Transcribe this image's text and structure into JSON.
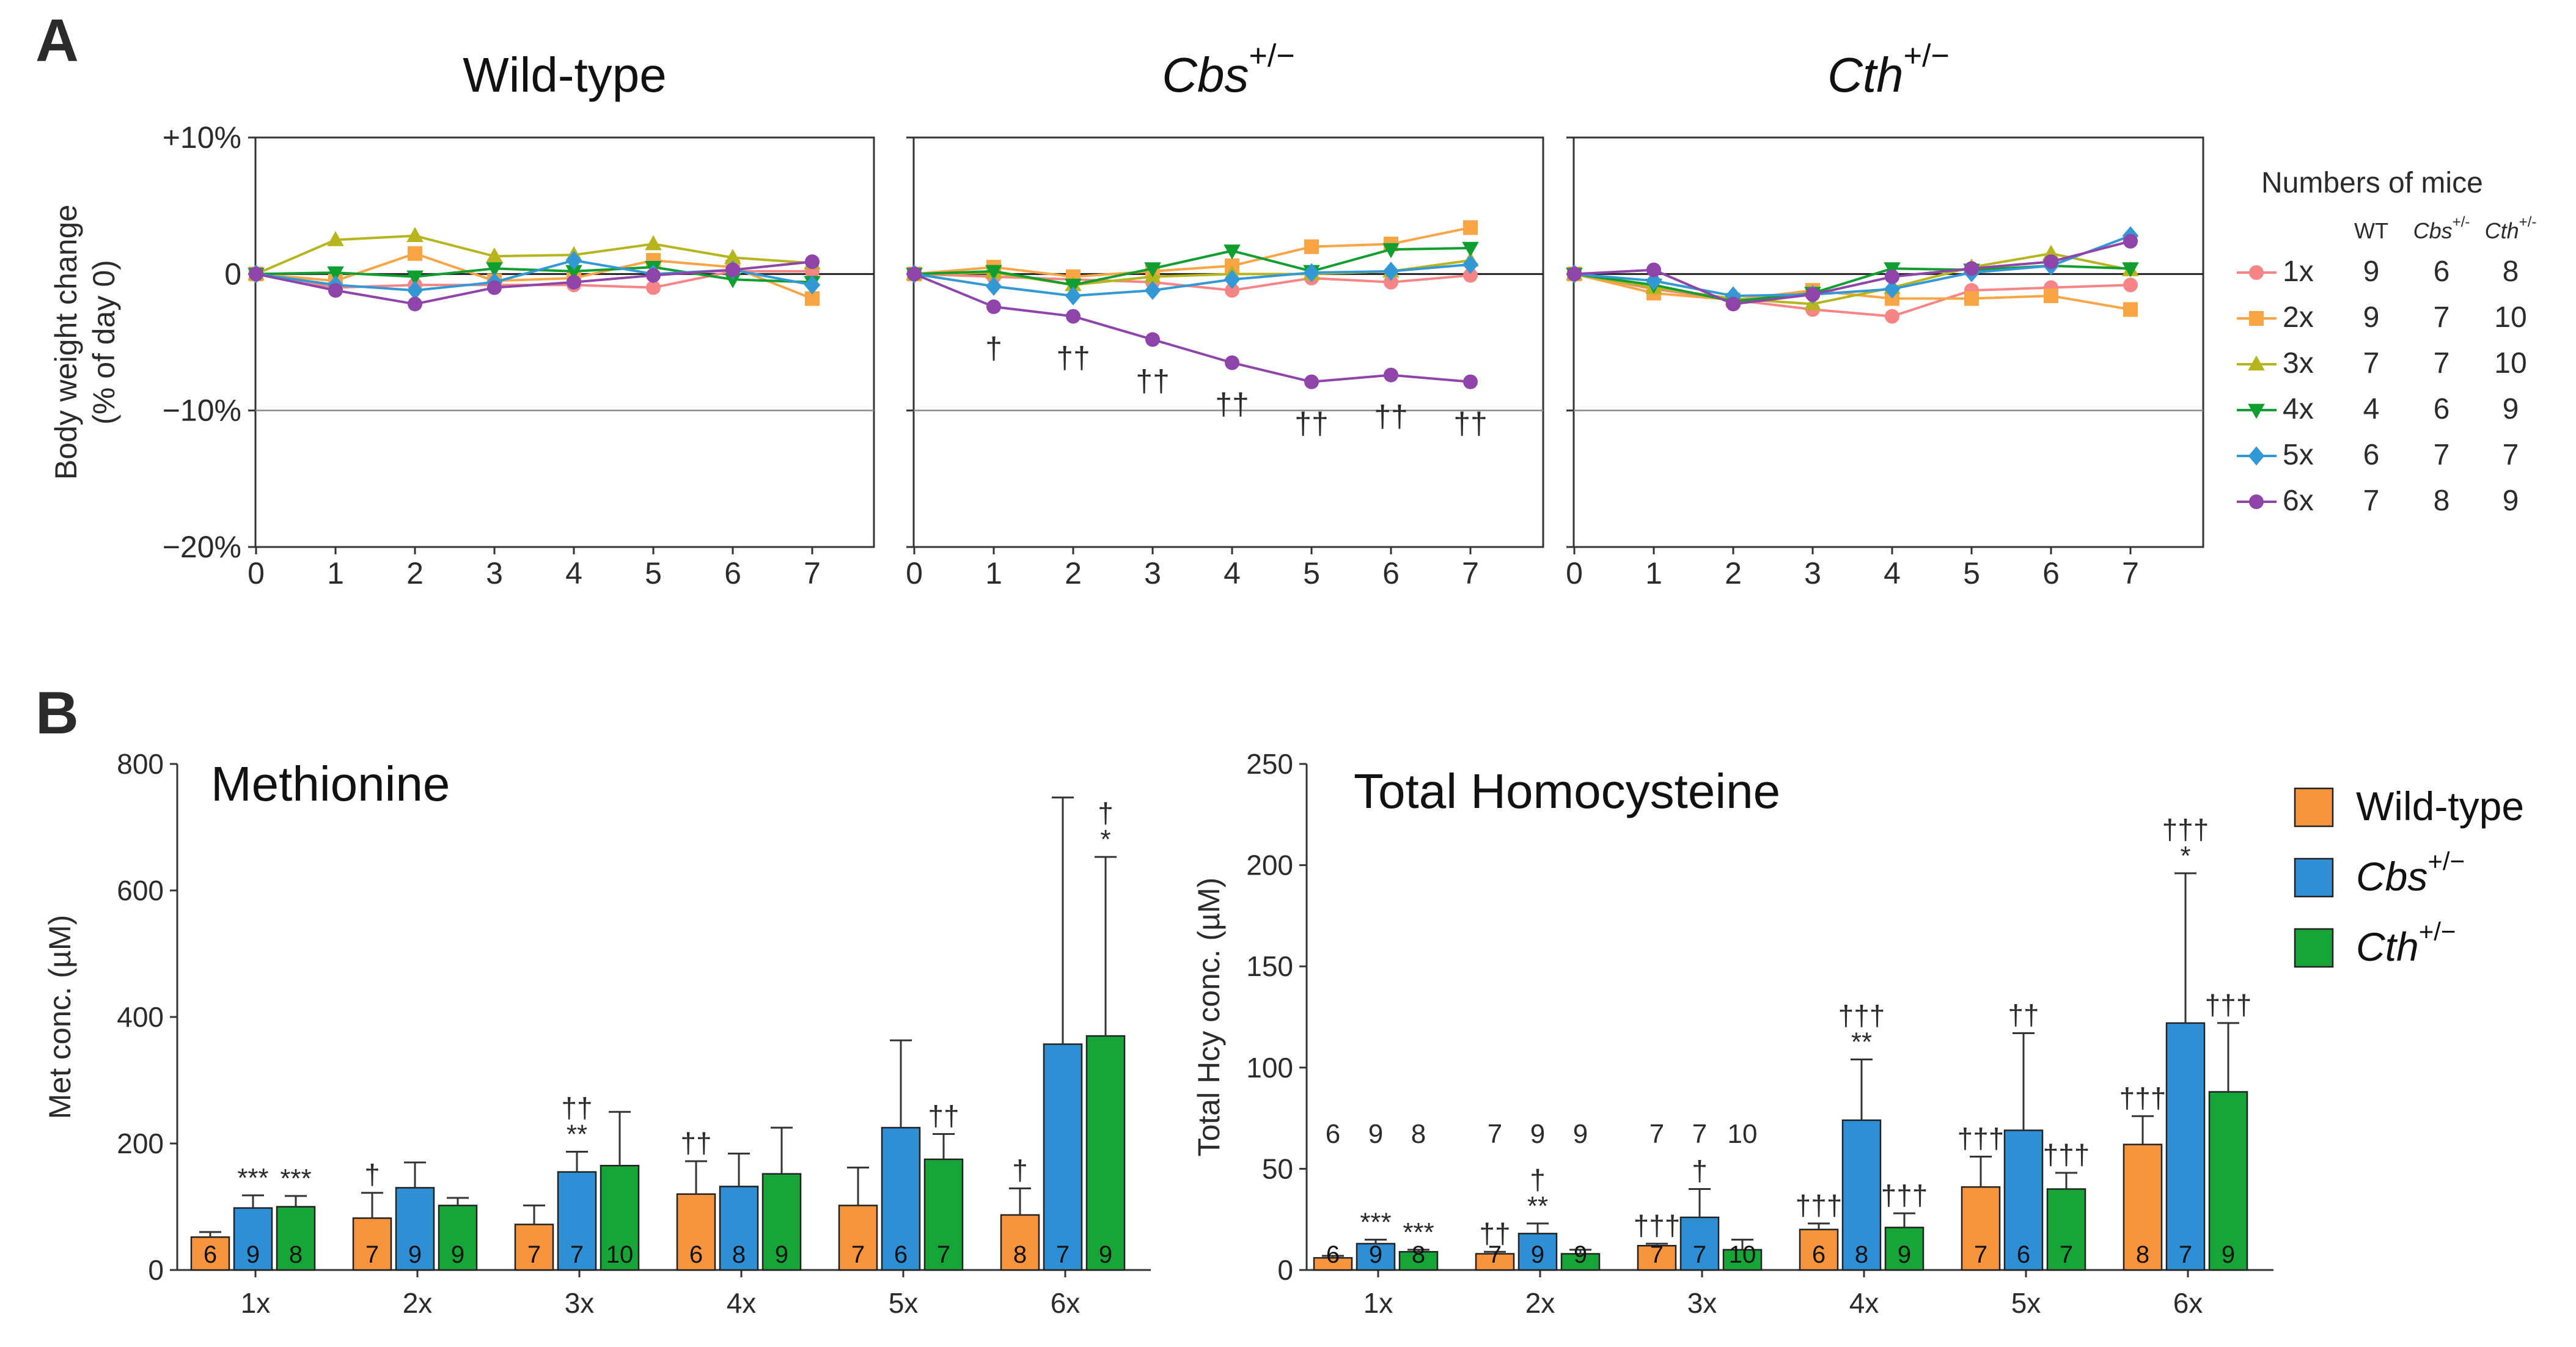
{
  "panel_labels": [
    "A",
    "B"
  ],
  "colors": {
    "wt": "#f7943d",
    "cbs": "#2f8fd4",
    "cth": "#17a537",
    "line_1x": "#f88585",
    "line_2x": "#f9a545",
    "line_3x": "#b6b51e",
    "line_4x": "#0f9e2f",
    "line_5x": "#3399d6",
    "line_6x": "#8e44a8"
  },
  "panel_a": {
    "y_axis_label_line1": "Body weight change",
    "y_axis_label_line2": "(% of day 0)",
    "y_tick_labels": [
      "+10%",
      "0",
      "−10%",
      "−20%"
    ],
    "legend": {
      "title": "Numbers of mice",
      "col_wt": "WT",
      "col_cbs_base": "Cbs",
      "col_cth_base": "Cth",
      "sup": "+/-",
      "rows": [
        {
          "label": "1x",
          "wt": "9",
          "cbs": "6",
          "cth": "8",
          "marker": "circle",
          "color_key": "line_1x"
        },
        {
          "label": "2x",
          "wt": "9",
          "cbs": "7",
          "cth": "10",
          "marker": "square",
          "color_key": "line_2x"
        },
        {
          "label": "3x",
          "wt": "7",
          "cbs": "7",
          "cth": "10",
          "marker": "triangle-up",
          "color_key": "line_3x"
        },
        {
          "label": "4x",
          "wt": "4",
          "cbs": "6",
          "cth": "9",
          "marker": "triangle-down",
          "color_key": "line_4x"
        },
        {
          "label": "5x",
          "wt": "6",
          "cbs": "7",
          "cth": "7",
          "marker": "diamond",
          "color_key": "line_5x"
        },
        {
          "label": "6x",
          "wt": "7",
          "cbs": "8",
          "cth": "9",
          "marker": "circle",
          "color_key": "line_6x"
        }
      ]
    }
  },
  "panel_b_legend": {
    "wt": "Wild-type",
    "cbs_base": "Cbs",
    "cth_base": "Cth",
    "sup": "+/−"
  },
  "chart_data": [
    {
      "type": "line",
      "title": "Wild-type",
      "x": [
        0,
        1,
        2,
        3,
        4,
        5,
        6,
        7
      ],
      "ylim": [
        -20,
        10
      ],
      "y_ticks": [
        10,
        0,
        -10,
        -20
      ],
      "reference_line": -10,
      "series": [
        {
          "name": "1x",
          "values": [
            0,
            -1.0,
            -0.8,
            -0.8,
            -0.8,
            -1.0,
            0.2,
            0.2
          ]
        },
        {
          "name": "2x",
          "values": [
            0,
            -0.5,
            1.5,
            -0.5,
            -0.3,
            1.0,
            0.5,
            -1.8
          ]
        },
        {
          "name": "3x",
          "values": [
            0,
            2.5,
            2.8,
            1.3,
            1.4,
            2.2,
            1.2,
            0.8
          ]
        },
        {
          "name": "4x",
          "values": [
            0,
            0.1,
            -0.2,
            0.4,
            0.2,
            0.5,
            -0.4,
            -0.6
          ]
        },
        {
          "name": "5x",
          "values": [
            0,
            -0.8,
            -1.2,
            -0.6,
            1.0,
            0.0,
            0.3,
            -0.8
          ]
        },
        {
          "name": "6x",
          "values": [
            0,
            -1.2,
            -2.2,
            -1.0,
            -0.6,
            -0.1,
            0.3,
            0.9
          ]
        }
      ],
      "annotations": []
    },
    {
      "type": "line",
      "title_base": "Cbs",
      "title_sup": "+/−",
      "x": [
        0,
        1,
        2,
        3,
        4,
        5,
        6,
        7
      ],
      "ylim": [
        -20,
        10
      ],
      "reference_line": -10,
      "series": [
        {
          "name": "1x",
          "values": [
            0,
            -0.2,
            -0.4,
            -0.6,
            -1.2,
            -0.3,
            -0.6,
            -0.1
          ]
        },
        {
          "name": "2x",
          "values": [
            0,
            0.5,
            -0.2,
            0.2,
            0.6,
            2.0,
            2.2,
            3.4
          ]
        },
        {
          "name": "3x",
          "values": [
            0,
            0.1,
            -0.8,
            -0.2,
            0.0,
            0.0,
            0.2,
            1.0
          ]
        },
        {
          "name": "4x",
          "values": [
            0,
            0.2,
            -0.8,
            0.4,
            1.7,
            0.2,
            1.8,
            1.9
          ]
        },
        {
          "name": "5x",
          "values": [
            0,
            -0.9,
            -1.6,
            -1.2,
            -0.4,
            0.1,
            0.2,
            0.7
          ]
        },
        {
          "name": "6x",
          "values": [
            0,
            -2.4,
            -3.1,
            -4.8,
            -6.5,
            -7.9,
            -7.4,
            -7.9
          ]
        }
      ],
      "annotations": [
        {
          "x": 1,
          "text": "†"
        },
        {
          "x": 2,
          "text": "††"
        },
        {
          "x": 3,
          "text": "††"
        },
        {
          "x": 4,
          "text": "††"
        },
        {
          "x": 5,
          "text": "††"
        },
        {
          "x": 6,
          "text": "††"
        },
        {
          "x": 7,
          "text": "††"
        }
      ]
    },
    {
      "type": "line",
      "title_base": "Cth",
      "title_sup": "+/−",
      "x": [
        0,
        1,
        2,
        3,
        4,
        5,
        6,
        7
      ],
      "ylim": [
        -20,
        10
      ],
      "reference_line": -10,
      "series": [
        {
          "name": "1x",
          "values": [
            0,
            -1.1,
            -1.9,
            -2.6,
            -3.1,
            -1.2,
            -1.0,
            -0.8
          ]
        },
        {
          "name": "2x",
          "values": [
            0,
            -1.4,
            -1.9,
            -1.2,
            -1.8,
            -1.8,
            -1.6,
            -2.6
          ]
        },
        {
          "name": "3x",
          "values": [
            0,
            -1.0,
            -1.8,
            -2.2,
            -1.0,
            0.5,
            1.5,
            0.3
          ]
        },
        {
          "name": "4x",
          "values": [
            0,
            -0.8,
            -2.0,
            -1.4,
            0.4,
            0.3,
            0.6,
            0.4
          ]
        },
        {
          "name": "5x",
          "values": [
            0,
            -0.5,
            -1.6,
            -1.5,
            -1.1,
            0.1,
            0.6,
            2.8
          ]
        },
        {
          "name": "6x",
          "values": [
            0,
            0.3,
            -2.2,
            -1.5,
            -0.2,
            0.4,
            0.9,
            2.4
          ]
        }
      ],
      "annotations": []
    },
    {
      "type": "bar",
      "title": "Methionine",
      "ylabel": "Met conc. (µM)",
      "categories": [
        "1x",
        "2x",
        "3x",
        "4x",
        "5x",
        "6x"
      ],
      "ylim": [
        0,
        800
      ],
      "y_ticks": [
        0,
        200,
        400,
        600,
        800
      ],
      "series": [
        {
          "name": "Wild-type",
          "values": [
            52,
            82,
            72,
            120,
            102,
            87
          ],
          "errors": [
            8,
            40,
            30,
            52,
            60,
            42
          ],
          "n": [
            "6",
            "7",
            "7",
            "6",
            "7",
            "8"
          ],
          "marks": [
            "",
            "†",
            "",
            "††",
            "",
            "†"
          ]
        },
        {
          "name": "Cbs+/−",
          "values": [
            98,
            130,
            155,
            132,
            225,
            357
          ],
          "errors": [
            20,
            40,
            32,
            52,
            138,
            390
          ],
          "n": [
            "9",
            "9",
            "7",
            "8",
            "6",
            "7"
          ],
          "marks": [
            "***",
            "",
            "††\n**",
            "",
            "",
            ""
          ]
        },
        {
          "name": "Cth+/−",
          "values": [
            100,
            102,
            165,
            152,
            175,
            370
          ],
          "errors": [
            17,
            12,
            85,
            73,
            40,
            283
          ],
          "n": [
            "8",
            "9",
            "10",
            "9",
            "7",
            "9"
          ],
          "marks": [
            "***",
            "",
            "",
            "",
            "††",
            "†\n*"
          ]
        }
      ]
    },
    {
      "type": "bar",
      "title": "Total Homocysteine",
      "ylabel": "Total Hcy conc. (µM)",
      "categories": [
        "1x",
        "2x",
        "3x",
        "4x",
        "5x",
        "6x"
      ],
      "ylim": [
        0,
        250
      ],
      "y_ticks": [
        0,
        50,
        100,
        150,
        200,
        250
      ],
      "series": [
        {
          "name": "Wild-type",
          "values": [
            6,
            8,
            12,
            20,
            41,
            62
          ],
          "errors": [
            1,
            1,
            1,
            3,
            15,
            14
          ],
          "n": [
            "6",
            "7",
            "7",
            "6",
            "7",
            "8"
          ],
          "marks": [
            "",
            "††",
            "†††",
            "†††",
            "†††",
            "†††"
          ]
        },
        {
          "name": "Cbs+/−",
          "values": [
            13,
            18,
            26,
            74,
            69,
            122
          ],
          "errors": [
            2,
            5,
            14,
            30,
            48,
            74
          ],
          "n": [
            "9",
            "9",
            "7",
            "8",
            "6",
            "7"
          ],
          "marks": [
            "***",
            "†\n**",
            "†",
            "†††\n**",
            "††",
            "†††\n*"
          ]
        },
        {
          "name": "Cth+/−",
          "values": [
            9,
            8,
            10,
            21,
            40,
            88
          ],
          "errors": [
            1,
            2,
            5,
            7,
            8,
            34
          ],
          "n": [
            "8",
            "9",
            "10",
            "9",
            "7",
            "9"
          ],
          "marks": [
            "***",
            "",
            "",
            "†††",
            "†††",
            "†††"
          ]
        }
      ],
      "group_top_counts": [
        [
          "6",
          "9",
          "8"
        ],
        [
          "7",
          "9",
          "9"
        ],
        [
          "7",
          "7",
          "10"
        ],
        [],
        [],
        []
      ]
    }
  ]
}
